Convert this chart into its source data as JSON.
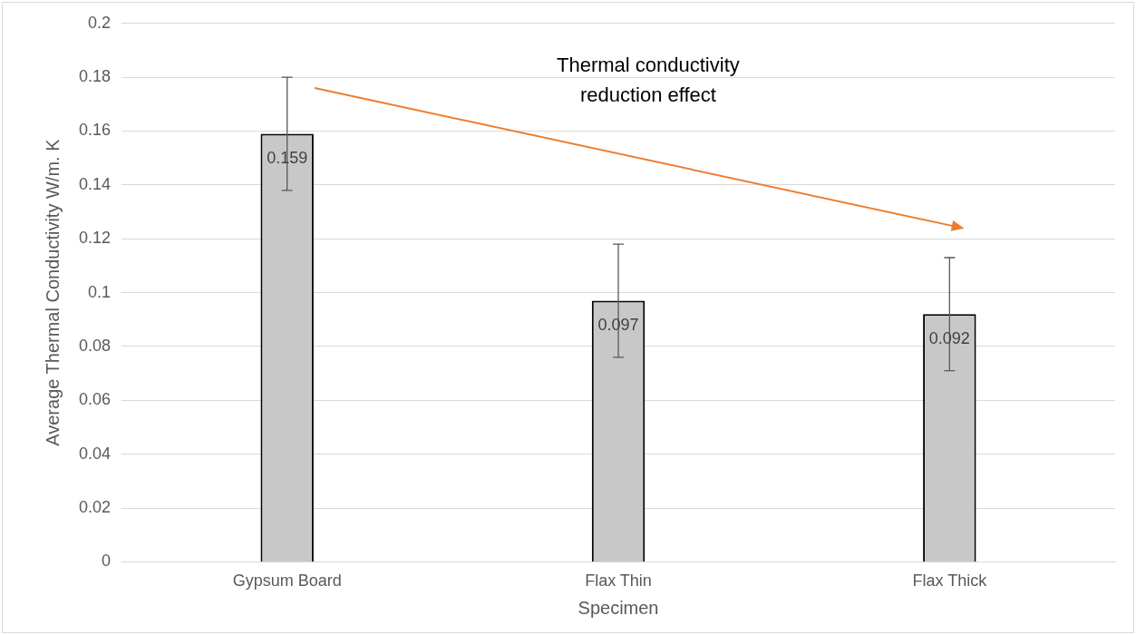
{
  "chart_data": {
    "type": "bar",
    "xlabel": "Specimen",
    "ylabel": "Average Thermal Conductivity W/m. K",
    "categories": [
      "Gypsum Board",
      "Flax Thin",
      "Flax Thick"
    ],
    "values": [
      0.159,
      0.097,
      0.092
    ],
    "errors": [
      0.021,
      0.021,
      0.021
    ],
    "color": "#c8c8c8",
    "ylim": [
      0,
      0.2
    ],
    "yticks": [
      0,
      0.02,
      0.04,
      0.06,
      0.08,
      0.1,
      0.12,
      0.14,
      0.16,
      0.18,
      0.2
    ],
    "grid": "y",
    "legend": false,
    "data_labels": true,
    "annotations": [
      "Thermal conductivity reduction effect"
    ]
  }
}
